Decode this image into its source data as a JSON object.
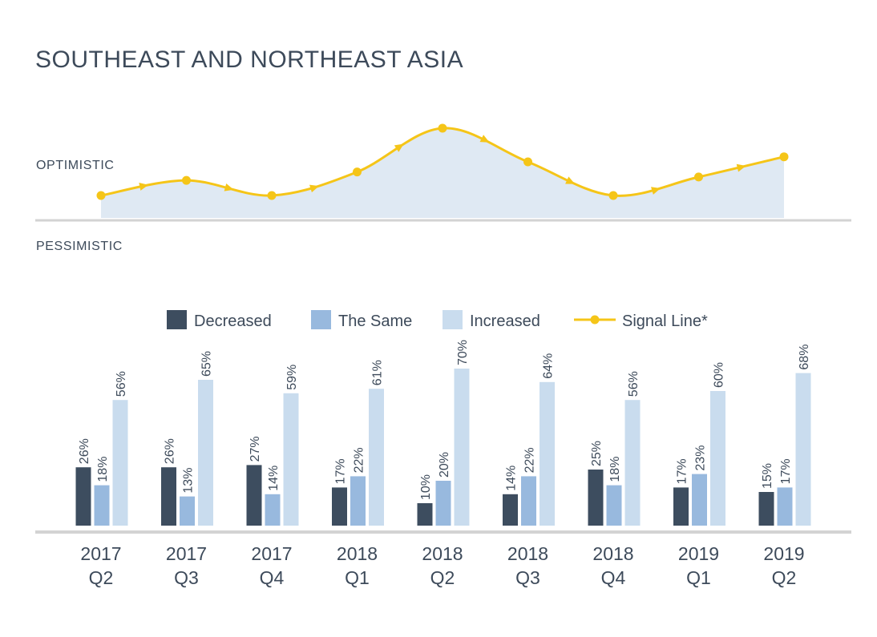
{
  "title": "SOUTHEAST AND NORTHEAST ASIA",
  "optimistic_label": "OPTIMISTIC",
  "pessimistic_label": "PESSIMISTIC",
  "colors": {
    "decreased": "#3d4d5f",
    "same": "#98b9de",
    "increased": "#c9dcee",
    "signal": "#f5c518",
    "signal_fill": "#dfe9f3",
    "axis": "#d3d3d3",
    "text": "#3d4a5a"
  },
  "chart_data": {
    "type": "bar",
    "categories": [
      {
        "year": "2017",
        "quarter": "Q2"
      },
      {
        "year": "2017",
        "quarter": "Q3"
      },
      {
        "year": "2017",
        "quarter": "Q4"
      },
      {
        "year": "2018",
        "quarter": "Q1"
      },
      {
        "year": "2018",
        "quarter": "Q2"
      },
      {
        "year": "2018",
        "quarter": "Q3"
      },
      {
        "year": "2018",
        "quarter": "Q4"
      },
      {
        "year": "2019",
        "quarter": "Q1"
      },
      {
        "year": "2019",
        "quarter": "Q2"
      }
    ],
    "series": [
      {
        "name": "Decreased",
        "key": "decreased",
        "values": [
          26,
          26,
          27,
          17,
          10,
          14,
          25,
          17,
          15
        ]
      },
      {
        "name": "The Same",
        "key": "same",
        "values": [
          18,
          13,
          14,
          22,
          20,
          22,
          18,
          23,
          17
        ]
      },
      {
        "name": "Increased",
        "key": "increased",
        "values": [
          56,
          65,
          59,
          61,
          70,
          64,
          56,
          60,
          68
        ]
      }
    ],
    "signal_line": {
      "name": "Signal Line*",
      "values": [
        30,
        39,
        30,
        44,
        70,
        50,
        30,
        41,
        53
      ]
    },
    "value_suffix": "%",
    "ylim": [
      0,
      100
    ],
    "legend_placement": "top"
  }
}
